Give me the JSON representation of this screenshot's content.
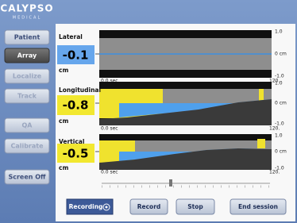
{
  "header": {
    "logo": "CALYPSO",
    "logo_sub": "MEDICAL"
  },
  "sidebar": {
    "buttons": [
      "Patient",
      "Array",
      "Localize",
      "Track",
      "QA",
      "Calibrate",
      "Screen Off"
    ]
  },
  "plots": [
    {
      "label": "Lateral",
      "value": "-0.1",
      "unit": "cm",
      "y_top": "1.0",
      "y_mid": "0 cm",
      "y_bottom": "-1.0",
      "x_start": "0.0 sec",
      "x_end": "120."
    },
    {
      "label": "Longitudinal",
      "value": "-0.8",
      "unit": "cm",
      "y_top": "1.0",
      "y_mid": "0 cm",
      "y_bottom": "-1.0",
      "x_start": "0.0 sec",
      "x_end": "120."
    },
    {
      "label": "Vertical",
      "value": "-0.5",
      "unit": "cm",
      "y_top": "1.0",
      "y_mid": "0 cm",
      "y_bottom": "-1.0",
      "x_start": "0.0 sec",
      "x_end": "120."
    }
  ],
  "controls": {
    "recording": "Recording",
    "buttons": [
      "Record",
      "Stop",
      "End session"
    ]
  }
}
